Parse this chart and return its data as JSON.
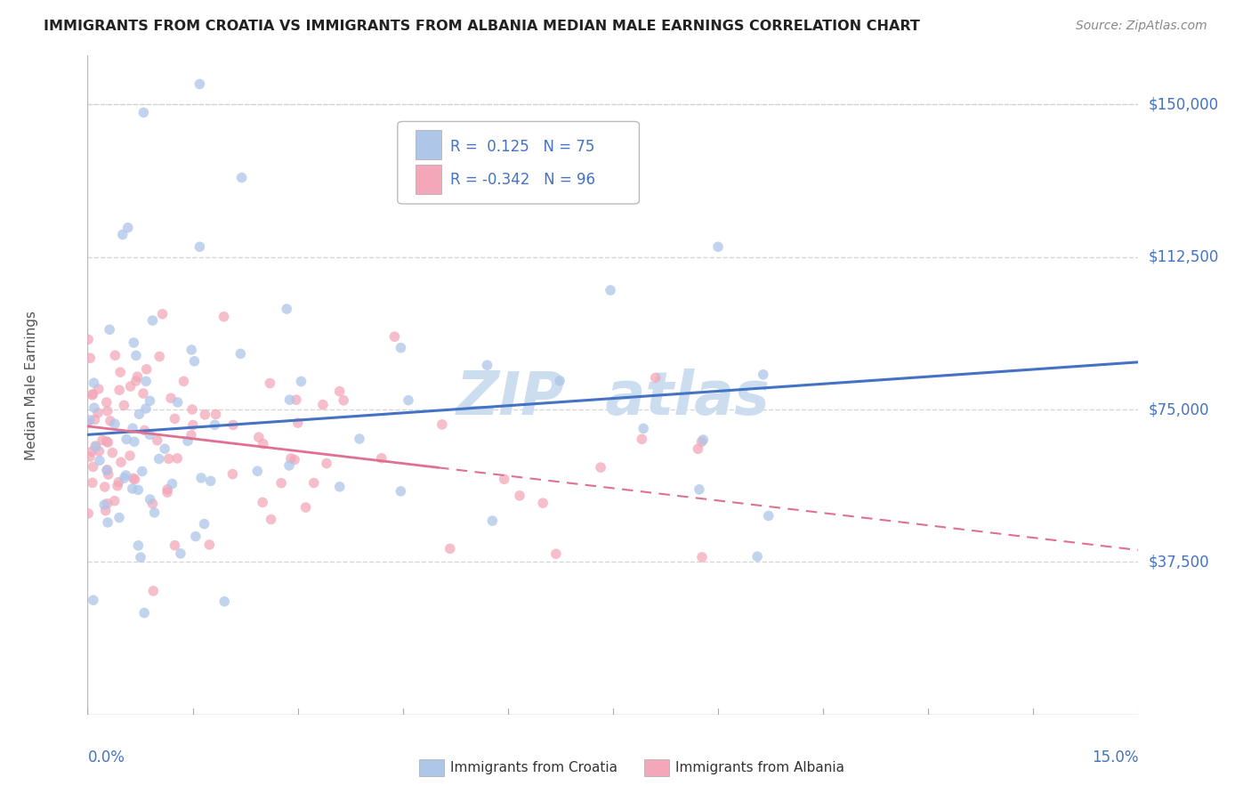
{
  "title": "IMMIGRANTS FROM CROATIA VS IMMIGRANTS FROM ALBANIA MEDIAN MALE EARNINGS CORRELATION CHART",
  "source": "Source: ZipAtlas.com",
  "ylabel": "Median Male Earnings",
  "xlim": [
    0.0,
    0.15
  ],
  "ylim": [
    0,
    162000
  ],
  "xtick_labels": [
    "0.0%",
    "15.0%"
  ],
  "ytick_values": [
    37500,
    75000,
    112500,
    150000
  ],
  "ytick_labels": [
    "$37,500",
    "$75,000",
    "$112,500",
    "$150,000"
  ],
  "croatia_color": "#aec6e8",
  "croatia_line_color": "#4472c4",
  "albania_color": "#f4a7b9",
  "albania_line_color": "#e07090",
  "croatia_R": 0.125,
  "croatia_N": 75,
  "albania_R": -0.342,
  "albania_N": 96,
  "background_color": "#ffffff",
  "grid_color": "#cccccc",
  "legend_label_croatia": "Immigrants from Croatia",
  "legend_label_albania": "Immigrants from Albania",
  "title_color": "#222222",
  "axis_label_color": "#555555",
  "tick_color": "#4472c4",
  "watermark_color": "#ccddf0"
}
